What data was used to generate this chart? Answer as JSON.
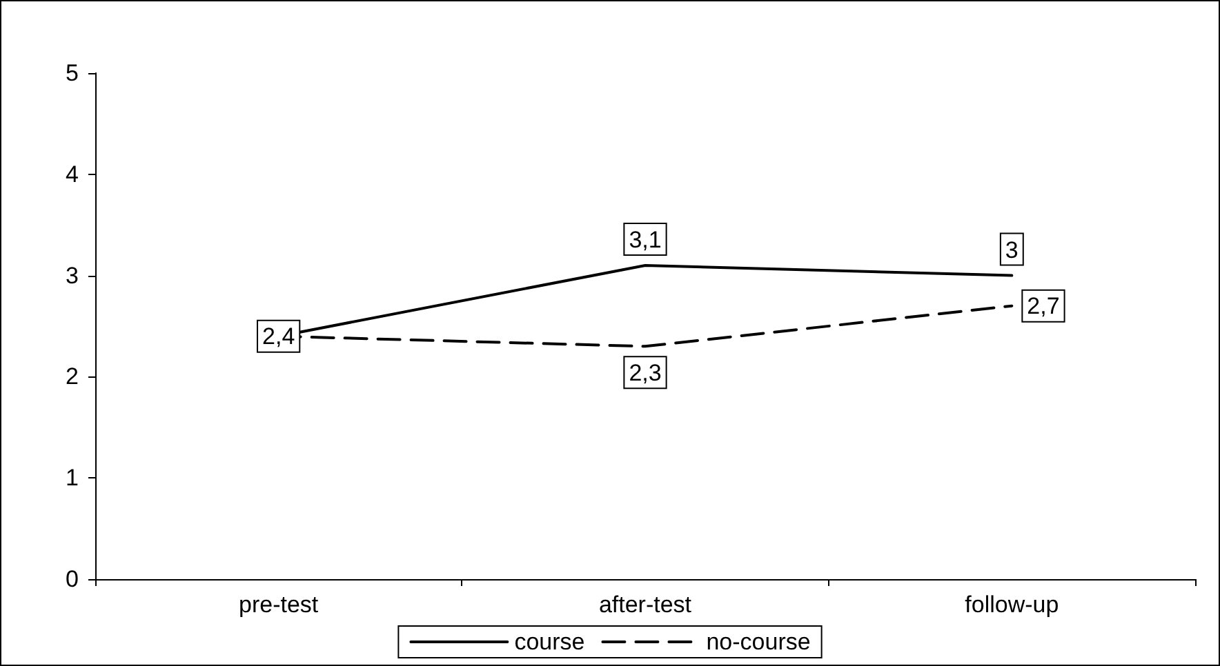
{
  "chart_data": {
    "type": "line",
    "categories": [
      "pre-test",
      "after-test",
      "follow-up"
    ],
    "series": [
      {
        "name": "course",
        "color": "#000000",
        "line_style": "solid",
        "values": [
          2.4,
          3.1,
          3.0
        ],
        "value_labels": [
          "2,4",
          "3,1",
          "3"
        ]
      },
      {
        "name": "no-course",
        "color": "#000000",
        "line_style": "dashed",
        "values": [
          2.4,
          2.3,
          2.7
        ],
        "value_labels": [
          null,
          "2,3",
          "2,7"
        ]
      }
    ],
    "ylim": [
      0,
      5
    ],
    "yticks": [
      0,
      1,
      2,
      3,
      4,
      5
    ],
    "grid": false,
    "legend": "bottom",
    "marker": "none"
  }
}
